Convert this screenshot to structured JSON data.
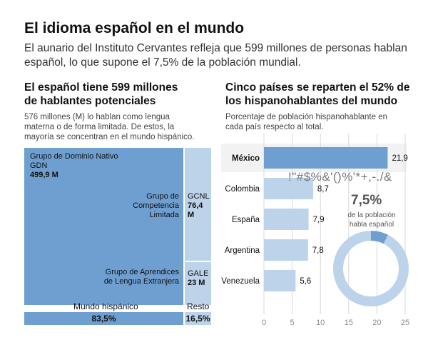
{
  "header": {
    "title": "El idioma español en el mundo",
    "subtitle": "El aunario del Instituto Cervantes refleja que 599 millones de personas hablan español, lo que supone el 7,5% de la población mundial."
  },
  "left": {
    "title_line1": "El español tiene 599 millones",
    "title_line2": "de hablantes potenciales",
    "desc_line1": "576 millones (M) lo hablan como lengua",
    "desc_line2": "materna o de forma limitada. De estos, la",
    "desc_line3": "mayoría se concentran en el mundo hispánico.",
    "blocks": {
      "gdn": {
        "line1": "Grupo de Dominio Nativo",
        "line2": "GDN",
        "value": "499,9 M"
      },
      "gcl": {
        "line1": "Grupo de",
        "line2": "Competencia",
        "line3": "Limitada"
      },
      "gcnl": {
        "abbr": "GCNL",
        "value": "76,4 M"
      },
      "gae": {
        "line1": "Grupo de Aprendices",
        "line2": "de Lengua Extranjera"
      },
      "gale": {
        "abbr": "GALE",
        "value": "23 M"
      }
    },
    "bottom": {
      "mundo_label": "Mundo hispánico",
      "resto_label": "Resto",
      "mundo_value": "83,5%",
      "resto_value": "16,5%"
    }
  },
  "right": {
    "title_line1": "Cinco países se reparten el 52% de",
    "title_line2": "los hispanohablantes del mundo",
    "desc_line1": "Porcentaje de población hispanohablante en",
    "desc_line2": "cada país respecto al total.",
    "garbled": "!\"#$%&'()%'*+,-./&",
    "callout": {
      "big": "7,5%",
      "small_line1": "de la población",
      "small_line2": "habla español"
    }
  },
  "colors": {
    "dark": "#6f9fd0",
    "light": "#bcd3ea",
    "grid": "#d9d9d9",
    "text": "#1a1a1a"
  },
  "chart_data": [
    {
      "type": "bar",
      "orientation": "horizontal",
      "categories": [
        "México",
        "Colombia",
        "España",
        "Argentina",
        "Venezuela"
      ],
      "values": [
        21.9,
        8.7,
        7.9,
        7.8,
        5.6
      ],
      "value_labels": [
        "21,9",
        "8,7",
        "7,9",
        "7,8",
        "5,6"
      ],
      "highlight": "México",
      "xlim": [
        0,
        25
      ],
      "xticks": [
        0,
        5,
        10,
        15,
        20,
        25
      ],
      "grid": "vertical"
    },
    {
      "type": "pie",
      "style": "donut",
      "slices": [
        {
          "value": 7.5,
          "color": "#6f9fd0"
        },
        {
          "value": 92.5,
          "color": "#bcd3ea"
        }
      ]
    },
    {
      "type": "treemap",
      "items": [
        {
          "label": "GDN",
          "value": 499.9
        },
        {
          "label": "GCNL",
          "value": 76.4
        },
        {
          "label": "GALE",
          "value": 23
        }
      ],
      "split": [
        {
          "label": "Mundo hispánico",
          "value": 83.5
        },
        {
          "label": "Resto",
          "value": 16.5
        }
      ]
    }
  ]
}
